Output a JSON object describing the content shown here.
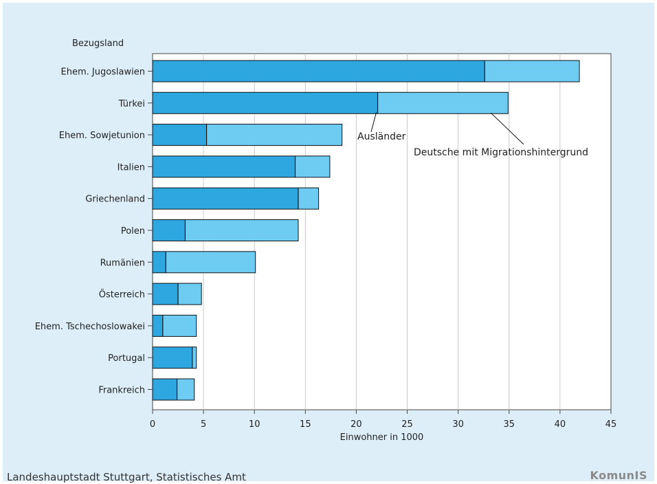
{
  "chart_data": {
    "type": "bar",
    "orientation": "horizontal",
    "stacked": true,
    "category_axis_label": "Bezugsland",
    "xlabel": "Einwohner in 1000",
    "xlim": [
      0,
      45
    ],
    "xticks": [
      0,
      5,
      10,
      15,
      20,
      25,
      30,
      35,
      40,
      45
    ],
    "grid": true,
    "categories": [
      "Ehem. Jugoslawien",
      "Türkei",
      "Ehem. Sowjetunion",
      "Italien",
      "Griechenland",
      "Polen",
      "Rumänien",
      "Österreich",
      "Ehem. Tschechoslowakei",
      "Portugal",
      "Frankreich"
    ],
    "series": [
      {
        "name": "Ausländer",
        "color": "#2ea7e0",
        "values": [
          32.6,
          22.1,
          5.3,
          14.0,
          14.3,
          3.2,
          1.3,
          2.5,
          1.0,
          3.9,
          2.4
        ]
      },
      {
        "name": "Deutsche mit Migrationshintergrund",
        "color": "#6ecbf2",
        "values": [
          9.3,
          12.8,
          13.3,
          3.4,
          2.0,
          11.1,
          8.8,
          2.3,
          3.3,
          0.4,
          1.7
        ]
      }
    ],
    "annotations": [
      {
        "text": "Ausländer",
        "category": "Türkei",
        "series": "Ausländer"
      },
      {
        "text": "Deutsche mit Migrationshintergrund",
        "category": "Türkei",
        "series": "Deutsche mit Migrationshintergrund"
      }
    ]
  },
  "footer": {
    "source": "Landeshauptstadt Stuttgart, Statistisches Amt",
    "logo_main": "KomunIS"
  }
}
